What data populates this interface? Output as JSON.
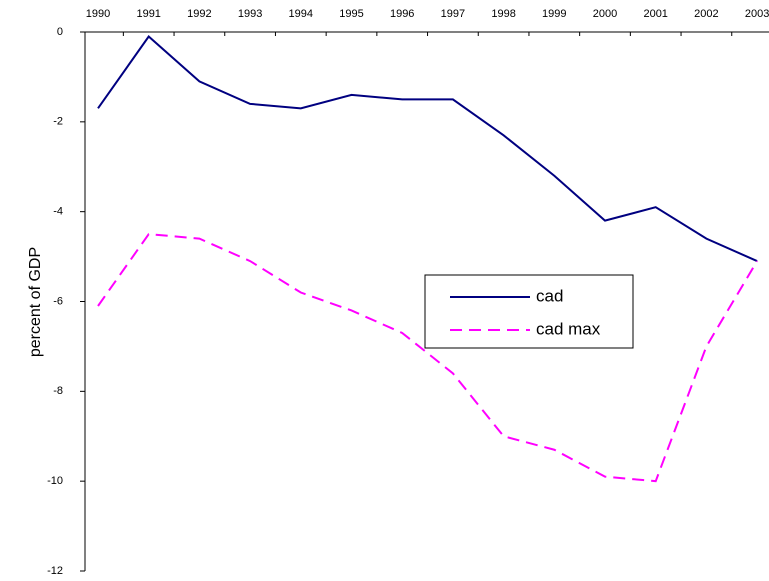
{
  "chart_data": {
    "type": "line",
    "y_label": "percent of GDP",
    "categories": [
      "1990",
      "1991",
      "1992",
      "1993",
      "1994",
      "1995",
      "1996",
      "1997",
      "1998",
      "1999",
      "2000",
      "2001",
      "2002",
      "2003"
    ],
    "series": [
      {
        "name": "cad",
        "color": "#000080",
        "dash": false,
        "values": [
          -1.7,
          -0.1,
          -1.1,
          -1.6,
          -1.7,
          -1.4,
          -1.5,
          -1.5,
          -2.3,
          -3.2,
          -4.2,
          -3.9,
          -4.6,
          -5.1
        ]
      },
      {
        "name": "cad max",
        "color": "#ff00ff",
        "dash": true,
        "values": [
          -6.1,
          -4.5,
          -4.6,
          -5.1,
          -5.8,
          -6.2,
          -6.7,
          -7.6,
          -9.0,
          -9.3,
          -9.9,
          -10.0,
          -7.0,
          -5.1
        ]
      }
    ],
    "ylim": [
      -12,
      0
    ],
    "yticks": [
      -12,
      -10,
      -8,
      -6,
      -4,
      -2,
      0
    ]
  }
}
